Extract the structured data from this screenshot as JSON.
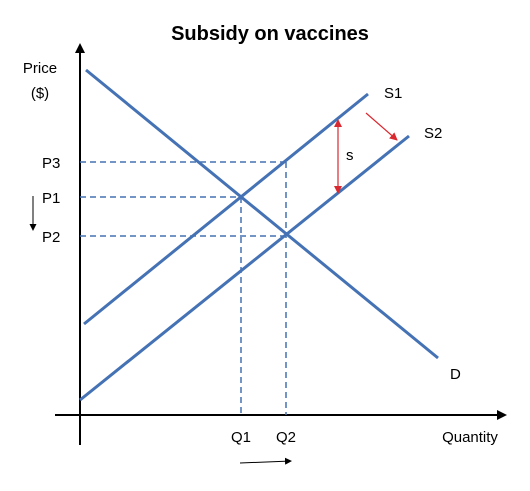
{
  "title": "Subsidy on vaccines",
  "axes": {
    "y_label_line1": "Price",
    "y_label_line2": "($)",
    "x_label": "Quantity"
  },
  "price_labels": {
    "p3": "P3",
    "p1": "P1",
    "p2": "P2"
  },
  "quantity_labels": {
    "q1": "Q1",
    "q2": "Q2"
  },
  "curve_labels": {
    "s1": "S1",
    "s2": "S2",
    "d": "D",
    "subsidy": "s"
  },
  "colors": {
    "curve": "#4472b4",
    "guide": "#4472b4",
    "subsidy_arrow": "#d9282f",
    "axis": "#000000"
  }
}
